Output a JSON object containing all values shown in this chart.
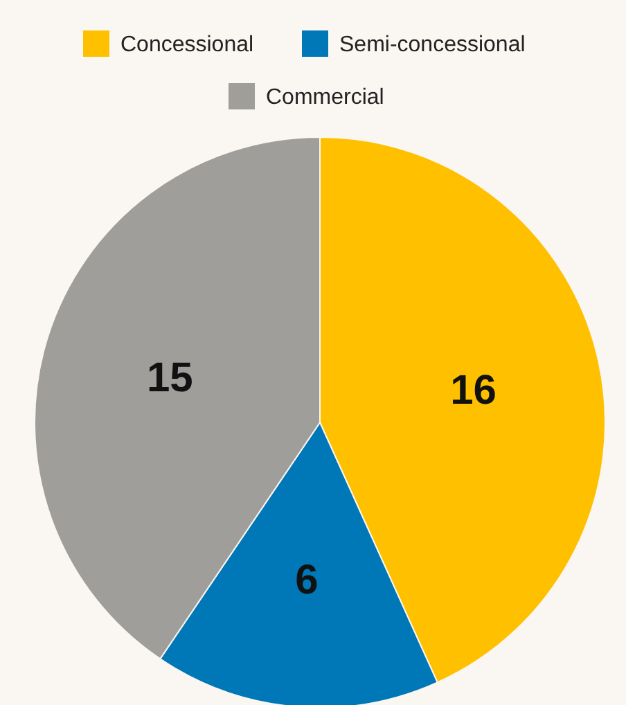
{
  "chart_data": {
    "type": "pie",
    "categories": [
      "Concessional",
      "Semi-concessional",
      "Commercial"
    ],
    "values": [
      16,
      6,
      15
    ],
    "colors": [
      "#ffc000",
      "#0077b6",
      "#a09e9b"
    ],
    "data_labels": true,
    "legend": "top"
  }
}
